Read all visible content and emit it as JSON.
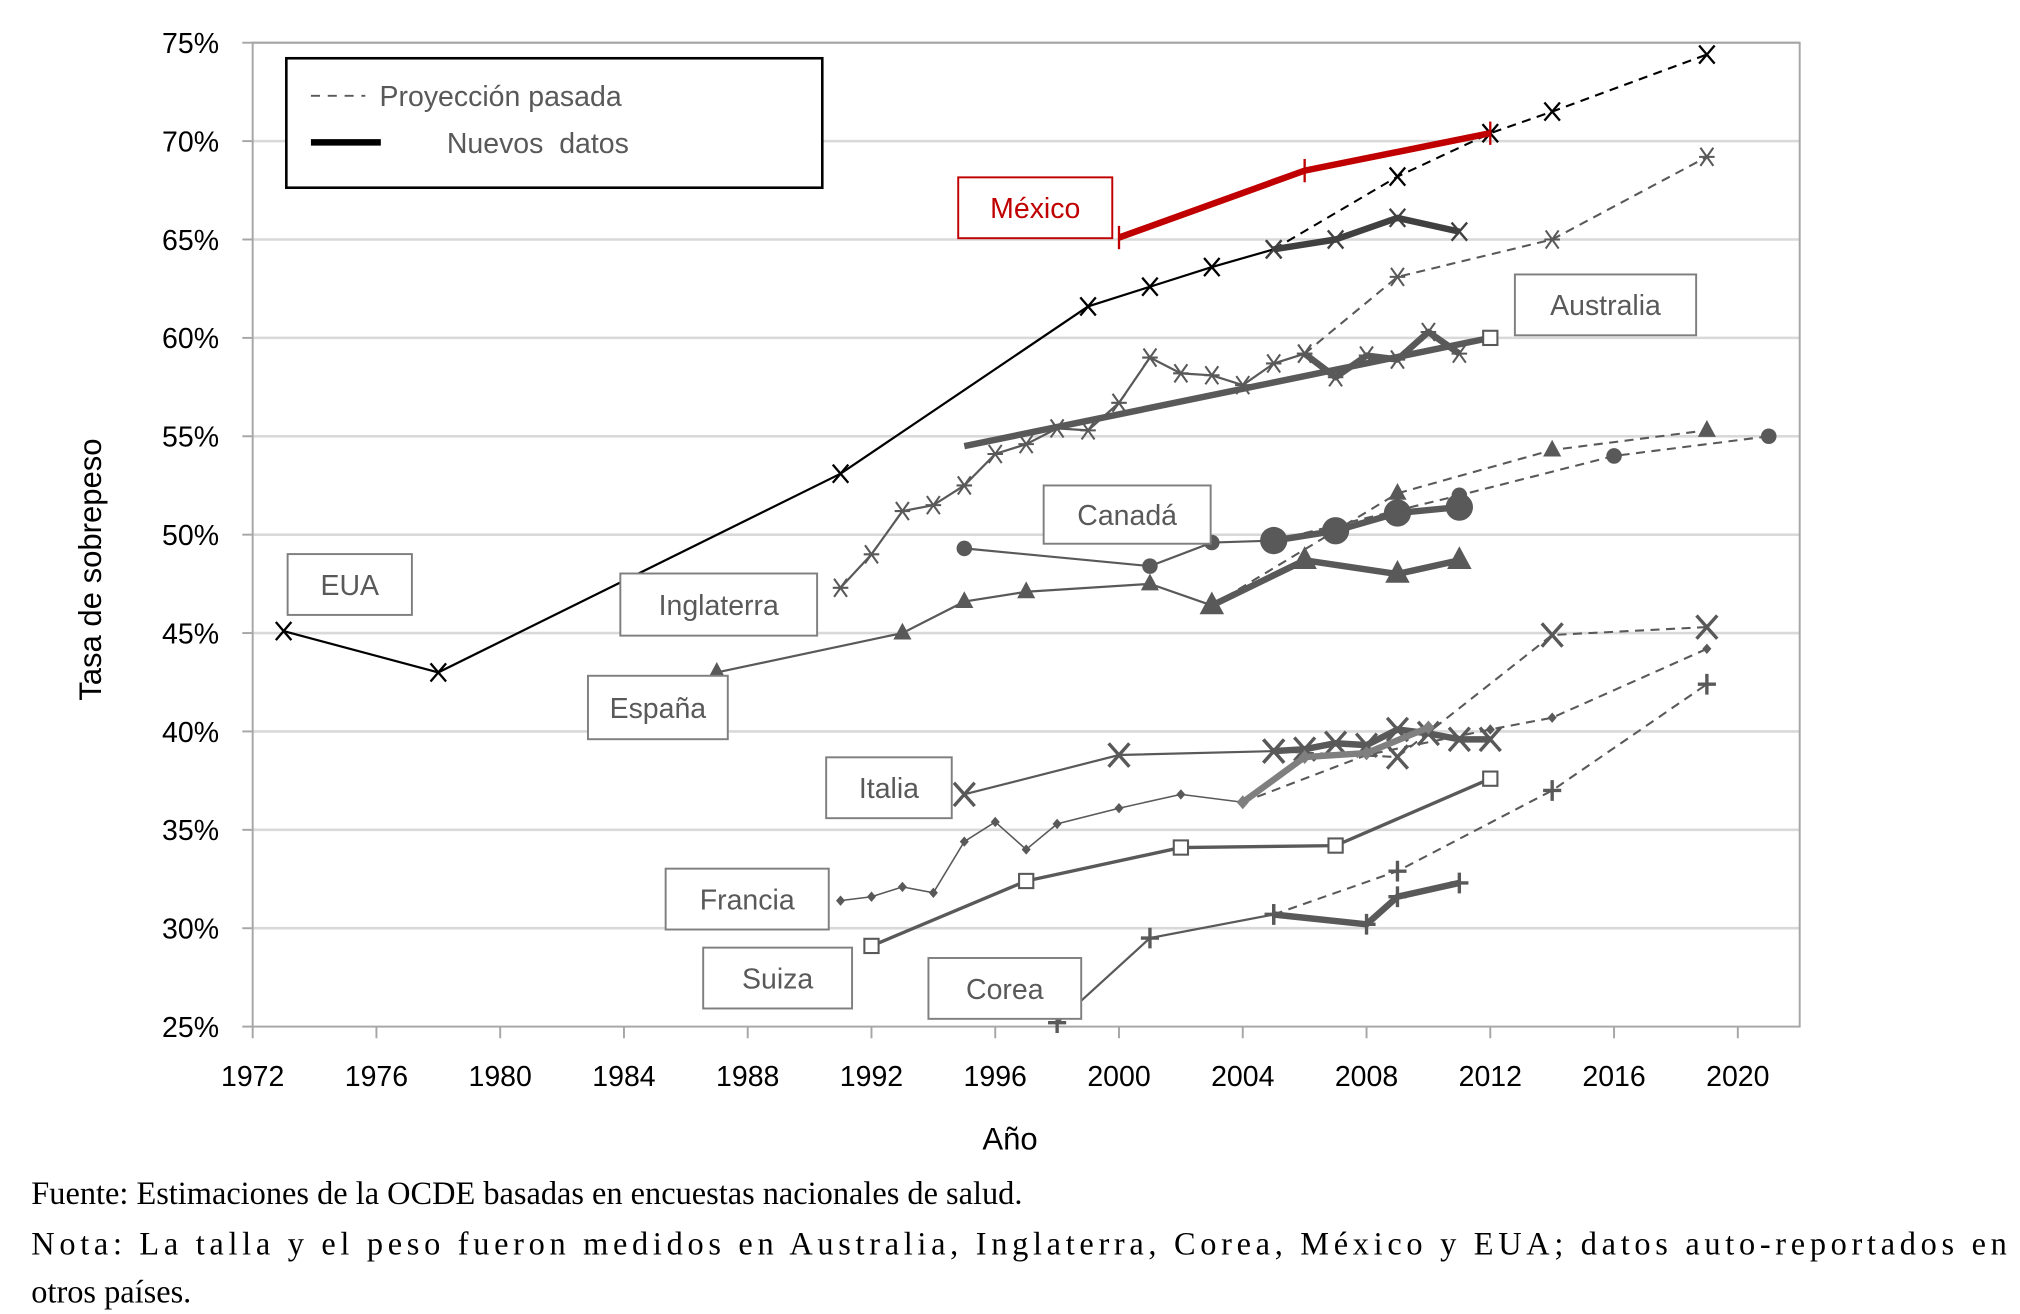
{
  "chart_data": {
    "type": "line",
    "xlabel": "Año",
    "ylabel": "Tasa de sobrepeso",
    "xlim": [
      1972,
      2022
    ],
    "ylim": [
      25,
      75
    ],
    "x_ticks": [
      "1972",
      "1976",
      "1980",
      "1984",
      "1988",
      "1992",
      "1996",
      "2000",
      "2004",
      "2008",
      "2012",
      "2016",
      "2020"
    ],
    "y_ticks": [
      "25%",
      "30%",
      "35%",
      "40%",
      "45%",
      "50%",
      "55%",
      "60%",
      "65%",
      "70%",
      "75%"
    ],
    "grid": "horizontal",
    "legend": {
      "position": "top-left",
      "entries": [
        {
          "label": "Proyección pasada",
          "style": "dashed"
        },
        {
          "label": "Nuevos  datos",
          "style": "thick"
        }
      ]
    },
    "colors": {
      "default": "#595959",
      "EUA": "#000000",
      "México": "#c00000",
      "francia_new": "#7f7f7f"
    },
    "series": [
      {
        "name": "EUA",
        "marker": "x",
        "color": "#000000",
        "data": [
          [
            1973,
            45.1
          ],
          [
            1978,
            43.0
          ],
          [
            1991,
            53.1
          ],
          [
            1999,
            61.6
          ],
          [
            2001,
            62.6
          ],
          [
            2003,
            63.6
          ],
          [
            2005,
            64.5
          ]
        ],
        "new": [
          [
            2005,
            64.5
          ],
          [
            2007,
            65.0
          ],
          [
            2009,
            66.1
          ],
          [
            2011,
            65.4
          ]
        ],
        "projection": [
          [
            2005,
            64.5
          ],
          [
            2009,
            68.2
          ],
          [
            2012,
            70.4
          ],
          [
            2014,
            71.5
          ],
          [
            2019,
            74.4
          ]
        ]
      },
      {
        "name": "México",
        "marker": "tick",
        "color": "#c00000",
        "data": [],
        "new": [
          [
            2000,
            65.1
          ],
          [
            2006,
            68.5
          ],
          [
            2012,
            70.4
          ]
        ],
        "projection": []
      },
      {
        "name": "Inglaterra",
        "marker": "asterisk",
        "color": "#595959",
        "data": [
          [
            1991,
            47.3
          ],
          [
            1992,
            49.0
          ],
          [
            1993,
            51.2
          ],
          [
            1994,
            51.5
          ],
          [
            1995,
            52.5
          ],
          [
            1996,
            54.1
          ],
          [
            1997,
            54.6
          ],
          [
            1998,
            55.4
          ],
          [
            1999,
            55.3
          ],
          [
            2000,
            56.7
          ],
          [
            2001,
            59.0
          ],
          [
            2002,
            58.2
          ],
          [
            2003,
            58.1
          ],
          [
            2004,
            57.6
          ],
          [
            2005,
            58.7
          ],
          [
            2006,
            59.2
          ]
        ],
        "new": [
          [
            2006,
            59.2
          ],
          [
            2007,
            58.0
          ],
          [
            2008,
            59.1
          ],
          [
            2009,
            58.9
          ],
          [
            2010,
            60.3
          ],
          [
            2011,
            59.2
          ]
        ],
        "projection": [
          [
            2006,
            59.2
          ],
          [
            2009,
            63.1
          ],
          [
            2014,
            65.0
          ],
          [
            2019,
            69.2
          ]
        ]
      },
      {
        "name": "Australia",
        "marker": "square",
        "color": "#595959",
        "data": [],
        "new": [
          [
            1995,
            54.5
          ],
          [
            2012,
            60.0
          ]
        ],
        "projection": []
      },
      {
        "name": "Canadá",
        "marker": "circle",
        "color": "#595959",
        "data": [
          [
            1995,
            49.3
          ],
          [
            2001,
            48.4
          ],
          [
            2003,
            49.6
          ],
          [
            2005,
            49.7
          ]
        ],
        "new": [
          [
            2005,
            49.7
          ],
          [
            2007,
            50.2
          ],
          [
            2009,
            51.1
          ],
          [
            2011,
            51.4
          ]
        ],
        "projection": [
          [
            2005,
            49.7
          ],
          [
            2011,
            52.0
          ],
          [
            2016,
            54.0
          ],
          [
            2021,
            55.0
          ]
        ]
      },
      {
        "name": "España",
        "marker": "triangle",
        "color": "#595959",
        "data": [
          [
            1987,
            43.0
          ],
          [
            1993,
            45.0
          ],
          [
            1995,
            46.6
          ],
          [
            1997,
            47.1
          ],
          [
            2001,
            47.5
          ],
          [
            2003,
            46.4
          ]
        ],
        "new": [
          [
            2003,
            46.4
          ],
          [
            2006,
            48.7
          ],
          [
            2009,
            48.0
          ],
          [
            2011,
            48.7
          ]
        ],
        "projection": [
          [
            2003,
            46.4
          ],
          [
            2009,
            52.1
          ],
          [
            2014,
            54.3
          ],
          [
            2019,
            55.3
          ]
        ]
      },
      {
        "name": "Italia",
        "marker": "bigx",
        "color": "#595959",
        "data": [
          [
            1995,
            36.8
          ],
          [
            2000,
            38.8
          ],
          [
            2005,
            39.0
          ]
        ],
        "new": [
          [
            2005,
            39.0
          ],
          [
            2006,
            39.1
          ],
          [
            2007,
            39.4
          ],
          [
            2008,
            39.3
          ],
          [
            2009,
            40.1
          ],
          [
            2010,
            39.9
          ],
          [
            2011,
            39.6
          ],
          [
            2012,
            39.6
          ]
        ],
        "projection": [
          [
            2005,
            39.0
          ],
          [
            2009,
            38.7
          ],
          [
            2014,
            44.9
          ],
          [
            2019,
            45.3
          ]
        ]
      },
      {
        "name": "Francia",
        "marker": "diamond",
        "color": "#595959",
        "data": [
          [
            1991,
            31.4
          ],
          [
            1992,
            31.6
          ],
          [
            1993,
            32.1
          ],
          [
            1994,
            31.8
          ],
          [
            1995,
            34.4
          ],
          [
            1996,
            35.4
          ],
          [
            1997,
            34.0
          ],
          [
            1998,
            35.3
          ],
          [
            2000,
            36.1
          ],
          [
            2002,
            36.8
          ],
          [
            2004,
            36.4
          ]
        ],
        "new": [
          [
            2004,
            36.4
          ],
          [
            2006,
            38.7
          ],
          [
            2008,
            38.9
          ],
          [
            2010,
            40.2
          ]
        ],
        "projection": [
          [
            2004,
            36.4
          ],
          [
            2008,
            38.8
          ],
          [
            2012,
            40.1
          ],
          [
            2014,
            40.7
          ],
          [
            2019,
            44.2
          ]
        ]
      },
      {
        "name": "Suiza",
        "marker": "square",
        "color": "#595959",
        "data": [],
        "new": [
          [
            1992,
            29.1
          ],
          [
            1997,
            32.4
          ],
          [
            2002,
            34.1
          ],
          [
            2007,
            34.2
          ],
          [
            2012,
            37.6
          ]
        ],
        "projection": []
      },
      {
        "name": "Corea",
        "marker": "plus",
        "color": "#595959",
        "data": [
          [
            1998,
            25.2
          ],
          [
            2001,
            29.5
          ],
          [
            2005,
            30.7
          ]
        ],
        "new": [
          [
            2005,
            30.7
          ],
          [
            2008,
            30.2
          ],
          [
            2009,
            31.6
          ],
          [
            2011,
            32.3
          ]
        ],
        "projection": [
          [
            2005,
            30.7
          ],
          [
            2009,
            32.9
          ],
          [
            2014,
            37.0
          ],
          [
            2019,
            42.4
          ]
        ]
      }
    ]
  },
  "footer": {
    "source": "Fuente: Estimaciones de la OCDE basadas en encuestas nacionales de salud.",
    "note_line1": "Nota: La talla y el peso fueron medidos en Australia, Inglaterra, Corea, México y EUA; datos auto-reportados en",
    "note_line2": "otros países."
  }
}
